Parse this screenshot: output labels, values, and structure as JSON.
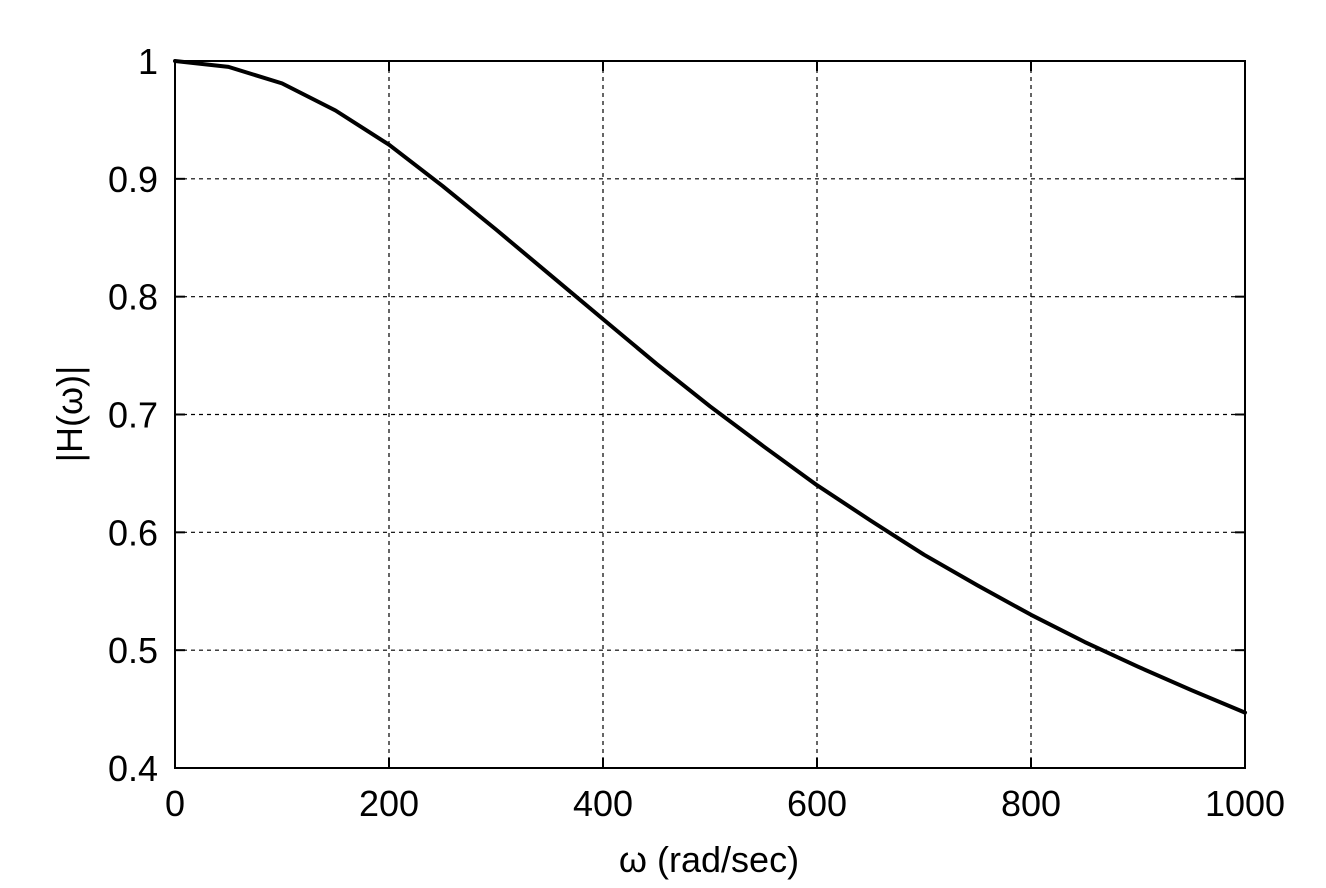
{
  "chart_data": {
    "type": "line",
    "title": "",
    "xlabel": "ω (rad/sec)",
    "ylabel": "|H(ω)|",
    "xlim": [
      0,
      1000
    ],
    "ylim": [
      0.4,
      1
    ],
    "grid": true,
    "line_color": "#000000",
    "x_ticks": [
      0,
      200,
      400,
      600,
      800,
      1000
    ],
    "x_tick_labels": [
      "0",
      "200",
      "400",
      "600",
      "800",
      "1000"
    ],
    "y_ticks": [
      0.4,
      0.5,
      0.6,
      0.7,
      0.8,
      0.9,
      1
    ],
    "y_tick_labels": [
      "0.4",
      "0.5",
      "0.6",
      "0.7",
      "0.8",
      "0.9",
      "1"
    ],
    "series": [
      {
        "x": [
          0,
          50,
          100,
          150,
          200,
          250,
          300,
          350,
          400,
          450,
          500,
          550,
          600,
          650,
          700,
          750,
          800,
          850,
          900,
          950,
          1000
        ],
        "y": [
          1.0,
          0.995,
          0.981,
          0.958,
          0.929,
          0.894,
          0.857,
          0.819,
          0.781,
          0.743,
          0.707,
          0.673,
          0.64,
          0.61,
          0.581,
          0.555,
          0.53,
          0.507,
          0.486,
          0.466,
          0.447
        ]
      }
    ]
  }
}
